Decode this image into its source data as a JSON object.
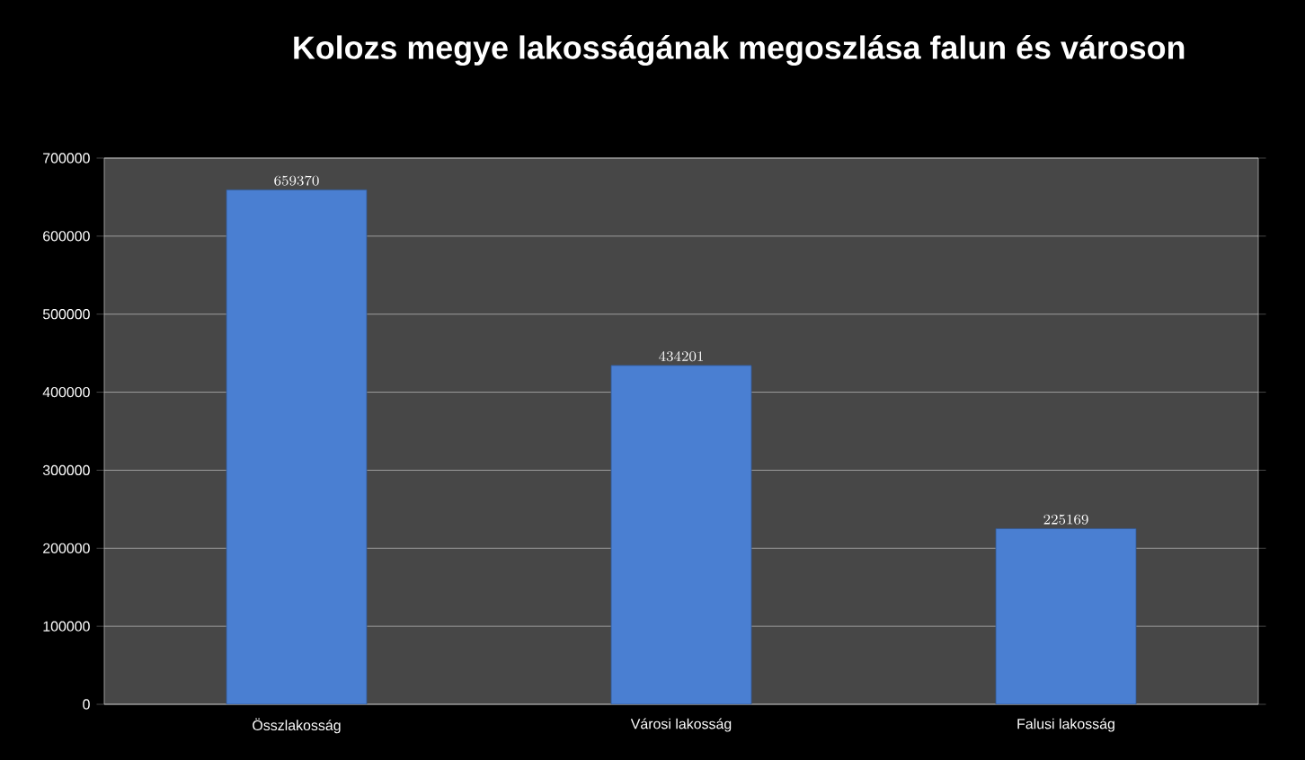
{
  "chart_data": {
    "type": "bar",
    "title": "Kolozs megye lakosságának megoszlása falun és városon",
    "categories": [
      "Összlakosság",
      "Városi lakosság",
      "Falusi lakosság"
    ],
    "values": [
      659370,
      434201,
      225169
    ],
    "color": "#4a7fd2",
    "ylim": [
      0,
      700000
    ],
    "yticks": [
      0,
      100000,
      200000,
      300000,
      400000,
      500000,
      600000,
      700000
    ],
    "grid": "y",
    "data_labels": true
  }
}
